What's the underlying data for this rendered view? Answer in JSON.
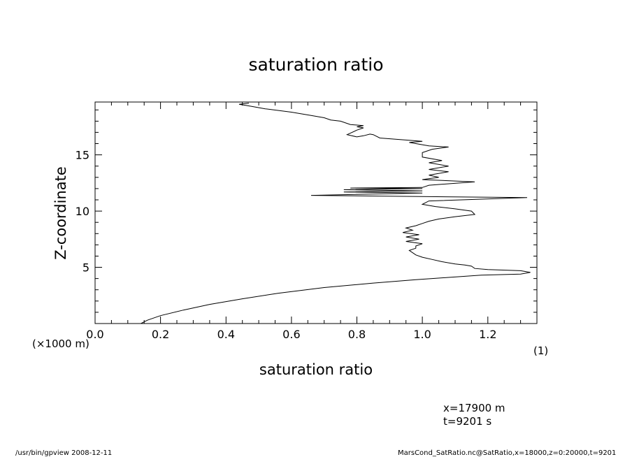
{
  "chart_data": {
    "type": "line",
    "title": "saturation ratio",
    "xlabel": "saturation ratio",
    "xunit": "(1)",
    "ylabel": "Z-coordinate",
    "yunit": "(×1000 m)",
    "xlim": [
      0.0,
      1.35
    ],
    "ylim": [
      0,
      19.7
    ],
    "xticks": [
      "0.0",
      "0.2",
      "0.4",
      "0.6",
      "0.8",
      "1.0",
      "1.2"
    ],
    "yticks": [
      "5",
      "10",
      "15"
    ],
    "grid": false,
    "series": [
      {
        "x": [
          0.14,
          0.16,
          0.2,
          0.27,
          0.35,
          0.45,
          0.56,
          0.7,
          0.85,
          0.98,
          1.08,
          1.18,
          1.3,
          1.33,
          1.3,
          1.2,
          1.16,
          1.15,
          1.13,
          1.1,
          1.06,
          1.03,
          1.0,
          0.98,
          0.97,
          0.96,
          0.98,
          0.98,
          1.0,
          0.95,
          0.99,
          0.95,
          0.99,
          0.94,
          0.97,
          0.95,
          0.98,
          1.0,
          1.02,
          1.05,
          1.1,
          1.16,
          1.15,
          1.1,
          1.04,
          1.0,
          1.02,
          1.32,
          0.66,
          1.0,
          0.76,
          1.0,
          0.76,
          1.0,
          0.78,
          1.0,
          1.02,
          1.16,
          1.0,
          1.05,
          1.02,
          1.08,
          1.02,
          1.08,
          1.02,
          1.06,
          1.0,
          1.0,
          1.03,
          1.08,
          1.02,
          1.0,
          0.98,
          0.96,
          1.0,
          0.96,
          0.87,
          0.85,
          0.84,
          0.82,
          0.8,
          0.77,
          0.8,
          0.82,
          0.8,
          0.82,
          0.78,
          0.77,
          0.75,
          0.72,
          0.7,
          0.66,
          0.6,
          0.52,
          0.48,
          0.46,
          0.44,
          0.47
        ],
        "y": [
          0.0,
          0.3,
          0.7,
          1.2,
          1.7,
          2.2,
          2.7,
          3.2,
          3.6,
          3.9,
          4.1,
          4.3,
          4.4,
          4.55,
          4.7,
          4.8,
          4.9,
          5.1,
          5.2,
          5.3,
          5.5,
          5.7,
          5.9,
          6.1,
          6.3,
          6.5,
          6.7,
          6.9,
          7.1,
          7.3,
          7.5,
          7.7,
          7.9,
          8.1,
          8.3,
          8.5,
          8.7,
          8.9,
          9.1,
          9.3,
          9.5,
          9.7,
          10.0,
          10.2,
          10.4,
          10.6,
          10.9,
          11.2,
          11.4,
          11.6,
          11.7,
          11.8,
          11.9,
          12.0,
          12.05,
          12.1,
          12.3,
          12.6,
          12.8,
          13.0,
          13.2,
          13.5,
          13.7,
          14.0,
          14.3,
          14.5,
          14.8,
          15.2,
          15.5,
          15.7,
          15.8,
          15.9,
          16.0,
          16.1,
          16.2,
          16.3,
          16.5,
          16.8,
          16.85,
          16.7,
          16.6,
          16.8,
          17.2,
          17.4,
          17.5,
          17.6,
          17.7,
          17.8,
          18.0,
          18.1,
          18.3,
          18.5,
          18.8,
          19.1,
          19.3,
          19.4,
          19.5,
          19.6
        ]
      }
    ]
  },
  "annotations": {
    "x_position": "x=17900 m",
    "time": "t=9201 s"
  },
  "footer": {
    "left": "/usr/bin/gpview   2008-12-11",
    "right": "MarsCond_SatRatio.nc@SatRatio,x=18000,z=0:20000,t=9201"
  }
}
